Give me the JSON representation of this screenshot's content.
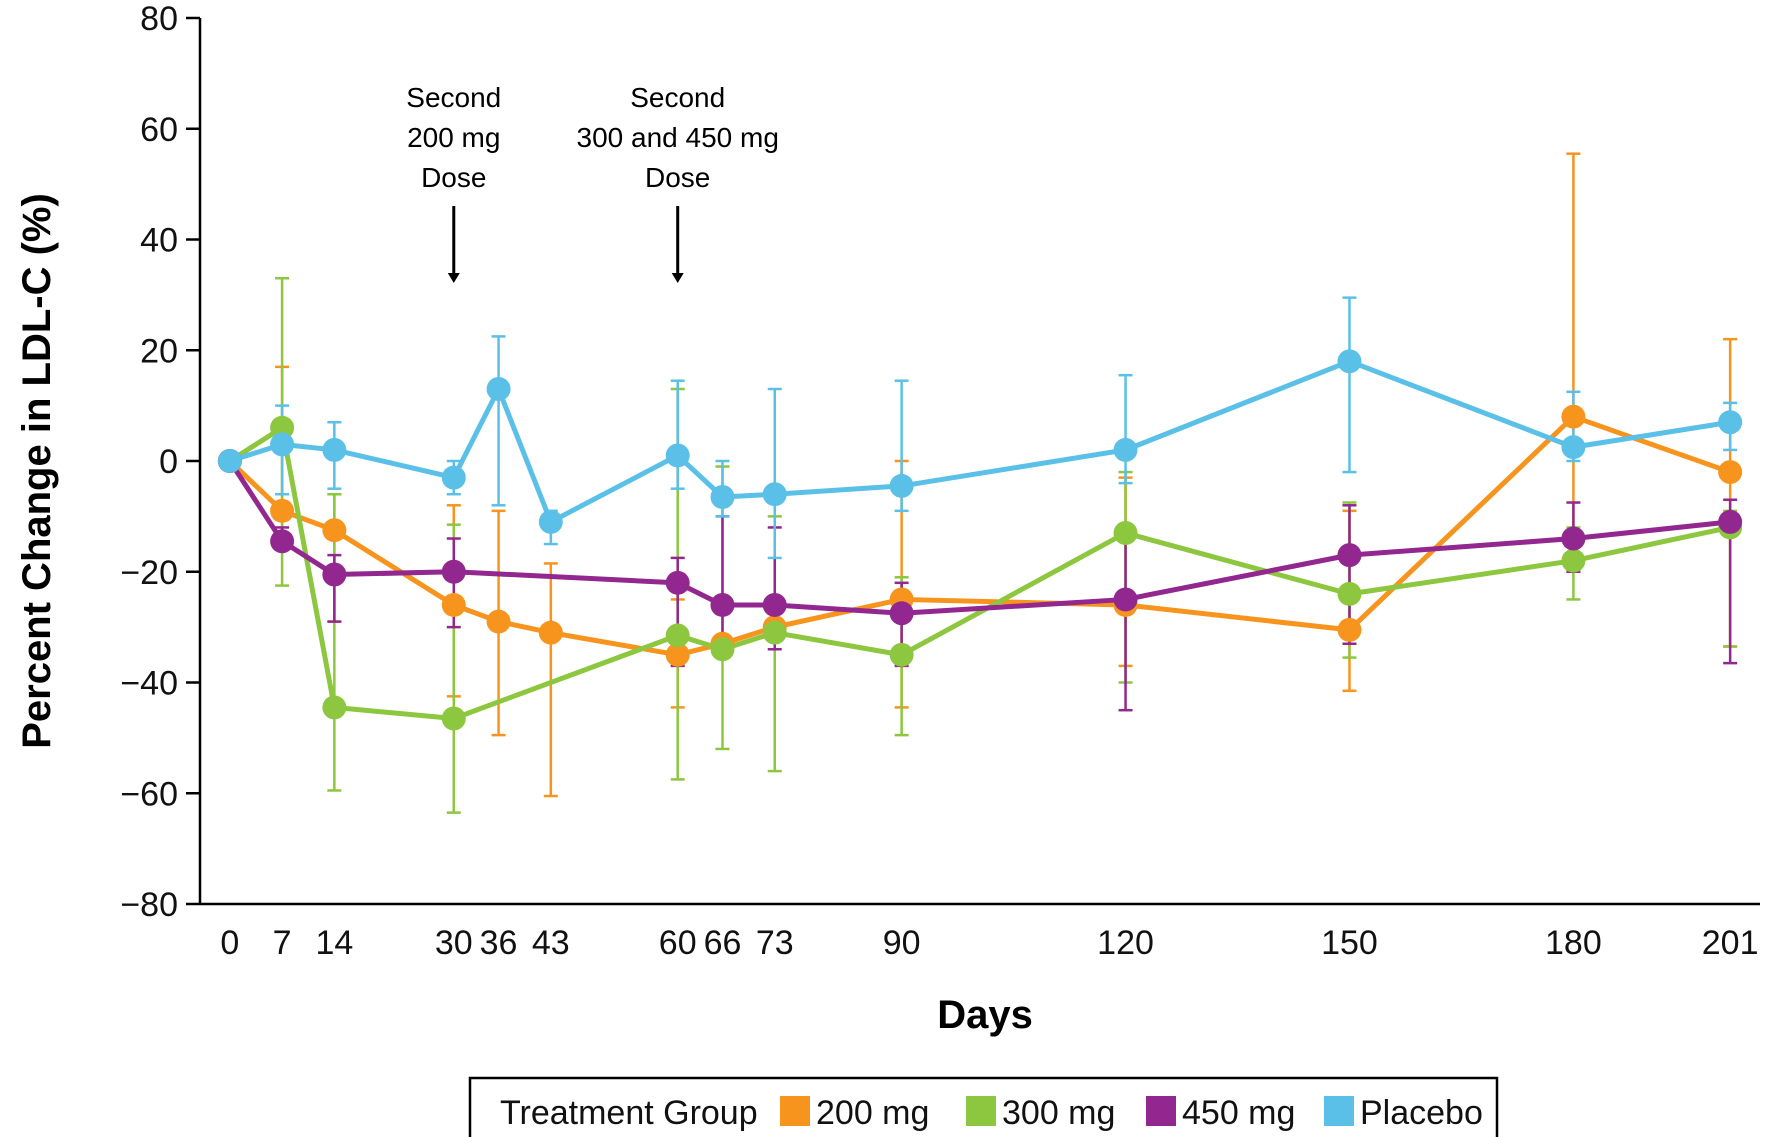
{
  "chart_data": {
    "type": "line",
    "title": "",
    "xlabel": "Days",
    "ylabel": "Percent Change in LDL-C (%)",
    "x": [
      0,
      7,
      14,
      30,
      36,
      43,
      60,
      66,
      73,
      90,
      120,
      150,
      180,
      201
    ],
    "xticks": [
      "0",
      "7",
      "14",
      "30",
      "36",
      "43",
      "60",
      "66",
      "73",
      "90",
      "120",
      "150",
      "180",
      "201"
    ],
    "xlim": [
      -4,
      205
    ],
    "ylim": [
      -80,
      80
    ],
    "yticks": [
      80,
      60,
      40,
      20,
      0,
      -20,
      -40,
      -60,
      -80
    ],
    "ytick_labels": [
      "80",
      "60",
      "40",
      "20",
      "0",
      "−20",
      "−40",
      "−60",
      "−80"
    ],
    "grid": false,
    "legend": {
      "title": "Treatment Group",
      "placement": "bottom-center"
    },
    "annotations": [
      {
        "x": 30,
        "lines": [
          "Second",
          "200 mg",
          "Dose"
        ]
      },
      {
        "x": 60,
        "lines": [
          "Second",
          "300 and 450 mg",
          "Dose"
        ]
      }
    ],
    "series": [
      {
        "name": "200 mg",
        "color": "#f7941d",
        "points": [
          {
            "x": 0,
            "y": 0
          },
          {
            "x": 7,
            "y": -9,
            "lo": -15,
            "hi": 17
          },
          {
            "x": 14,
            "y": -12.5,
            "lo": -29,
            "hi": -6
          },
          {
            "x": 30,
            "y": -26,
            "lo": -42.5,
            "hi": -8
          },
          {
            "x": 36,
            "y": -29,
            "lo": -49.5,
            "hi": -9
          },
          {
            "x": 43,
            "y": -31,
            "lo": -60.5,
            "hi": -18.5
          },
          {
            "x": 60,
            "y": -35,
            "lo": -44.5,
            "hi": -25
          },
          {
            "x": 66,
            "y": -33
          },
          {
            "x": 73,
            "y": -30
          },
          {
            "x": 90,
            "y": -25,
            "lo": -44.5,
            "hi": 0
          },
          {
            "x": 120,
            "y": -26,
            "lo": -37,
            "hi": -3
          },
          {
            "x": 150,
            "y": -30.5,
            "lo": -41.5,
            "hi": -9
          },
          {
            "x": 180,
            "y": 8,
            "lo": -13,
            "hi": 55.5
          },
          {
            "x": 201,
            "y": -2,
            "lo": -33.5,
            "hi": 22
          }
        ]
      },
      {
        "name": "300 mg",
        "color": "#8dc63f",
        "points": [
          {
            "x": 0,
            "y": 0
          },
          {
            "x": 7,
            "y": 6,
            "lo": -22.5,
            "hi": 33
          },
          {
            "x": 14,
            "y": -44.5,
            "lo": -59.5,
            "hi": -6
          },
          {
            "x": 30,
            "y": -46.5,
            "lo": -63.5,
            "hi": -11.5
          },
          {
            "x": 60,
            "y": -31.5,
            "lo": -57.5,
            "hi": 13
          },
          {
            "x": 66,
            "y": -34,
            "lo": -52,
            "hi": -1
          },
          {
            "x": 73,
            "y": -31,
            "lo": -56,
            "hi": -10
          },
          {
            "x": 90,
            "y": -35,
            "lo": -49.5,
            "hi": -21
          },
          {
            "x": 120,
            "y": -13,
            "lo": -40,
            "hi": -2
          },
          {
            "x": 150,
            "y": -24,
            "lo": -35.5,
            "hi": -7.5
          },
          {
            "x": 180,
            "y": -18,
            "lo": -25,
            "hi": -12
          },
          {
            "x": 201,
            "y": -12,
            "lo": -33.5,
            "hi": -9
          }
        ]
      },
      {
        "name": "450 mg",
        "color": "#92278f",
        "points": [
          {
            "x": 0,
            "y": 0
          },
          {
            "x": 7,
            "y": -14.5,
            "lo": -16,
            "hi": -12
          },
          {
            "x": 14,
            "y": -20.5,
            "lo": -29,
            "hi": -17
          },
          {
            "x": 30,
            "y": -20,
            "lo": -30,
            "hi": -14
          },
          {
            "x": 60,
            "y": -22,
            "lo": -37,
            "hi": -17.5
          },
          {
            "x": 66,
            "y": -26,
            "lo": -33,
            "hi": -10
          },
          {
            "x": 73,
            "y": -26,
            "lo": -34,
            "hi": -12
          },
          {
            "x": 90,
            "y": -27.5,
            "lo": -37,
            "hi": -22
          },
          {
            "x": 120,
            "y": -25,
            "lo": -45,
            "hi": -12
          },
          {
            "x": 150,
            "y": -17,
            "lo": -33,
            "hi": -8
          },
          {
            "x": 180,
            "y": -14,
            "lo": -20,
            "hi": -7.5
          },
          {
            "x": 201,
            "y": -11,
            "lo": -36.5,
            "hi": -7
          }
        ]
      },
      {
        "name": "Placebo",
        "color": "#5bc0e8",
        "points": [
          {
            "x": 0,
            "y": 0
          },
          {
            "x": 7,
            "y": 3,
            "lo": -6,
            "hi": 10
          },
          {
            "x": 14,
            "y": 2,
            "lo": -5,
            "hi": 7
          },
          {
            "x": 30,
            "y": -3,
            "lo": -6,
            "hi": 0
          },
          {
            "x": 36,
            "y": 13,
            "lo": -8,
            "hi": 22.5
          },
          {
            "x": 43,
            "y": -11,
            "lo": -15,
            "hi": -9
          },
          {
            "x": 60,
            "y": 1,
            "lo": -5,
            "hi": 14.5
          },
          {
            "x": 66,
            "y": -6.5,
            "lo": -10,
            "hi": 0
          },
          {
            "x": 73,
            "y": -6,
            "lo": -17.5,
            "hi": 13
          },
          {
            "x": 90,
            "y": -4.5,
            "lo": -9,
            "hi": 14.5
          },
          {
            "x": 120,
            "y": 2,
            "lo": -4,
            "hi": 15.5
          },
          {
            "x": 150,
            "y": 18,
            "lo": -2,
            "hi": 29.5
          },
          {
            "x": 180,
            "y": 2.5,
            "lo": 0,
            "hi": 12.5
          },
          {
            "x": 201,
            "y": 7,
            "lo": 2,
            "hi": 10.5
          }
        ]
      }
    ]
  }
}
